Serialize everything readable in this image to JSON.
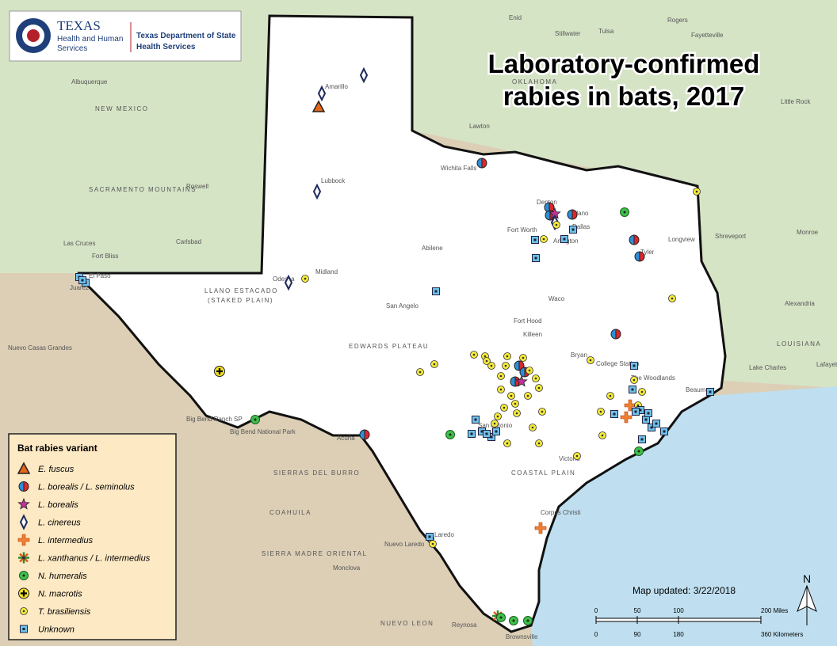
{
  "header": {
    "logo_lines": [
      "TEXAS",
      "Health and Human",
      "Services"
    ],
    "department_lines": [
      "Texas Department of State",
      "Health Services"
    ]
  },
  "title": [
    "Laboratory-confirmed",
    "rabies in bats, 2017"
  ],
  "legend": {
    "title": "Bat rabies variant",
    "items": [
      "E. fuscus",
      "L. borealis / L. seminolus",
      "L. borealis",
      "L. cinereus",
      "L. intermedius",
      "L. xanthanus / L. intermedius",
      "N. humeralis",
      "N. macrotis",
      "T. brasiliensis",
      "Unknown"
    ]
  },
  "map_updated": "Map updated: 3/22/2018",
  "scale": {
    "miles": [
      "0",
      "50",
      "100",
      "200 Miles"
    ],
    "km": [
      "0",
      "90",
      "180",
      "360 Kilometers"
    ]
  },
  "north": "N",
  "places": [
    "Amarillo",
    "Lubbock",
    "Midland",
    "Odessa",
    "El Paso",
    "Juarez",
    "Abilene",
    "San Angelo",
    "Wichita Falls",
    "Denton",
    "Plano",
    "Fort Worth",
    "Dallas",
    "Arlington",
    "Waco",
    "Killeen",
    "Fort Hood",
    "Bryan",
    "College Station",
    "Tyler",
    "Longview",
    "San Antonio",
    "Victoria",
    "Corpus Christi",
    "Laredo",
    "Nuevo Laredo",
    "Brownsville",
    "Reynosa",
    "Acuña",
    "Beaumont",
    "The Woodlands",
    "Shreveport",
    "Monroe",
    "Alexandria",
    "Lafayette",
    "Lake Charles",
    "OKLAHOMA",
    "Lawton",
    "Tulsa",
    "Enid",
    "Stillwater",
    "Rogers",
    "Fayetteville",
    "Little Rock",
    "Albuquerque",
    "Roswell",
    "Carlsbad",
    "Las Cruces",
    "Fort Bliss",
    "NEW MEXICO",
    "LOUISIANA",
    "Nuevo Casas Grandes",
    "Monclova",
    "COAHUILA",
    "SIERRAS DEL BURRO",
    "SIERRA MADRE ORIENTAL",
    "NUEVO LEON",
    "EDWARDS PLATEAU",
    "LLANO ESTACADO",
    "(STAKED PLAIN)",
    "COASTAL PLAIN",
    "SACRAMENTO MOUNTAINS",
    "Big Bend Ranch SP",
    "Big Bend National Park"
  ]
}
